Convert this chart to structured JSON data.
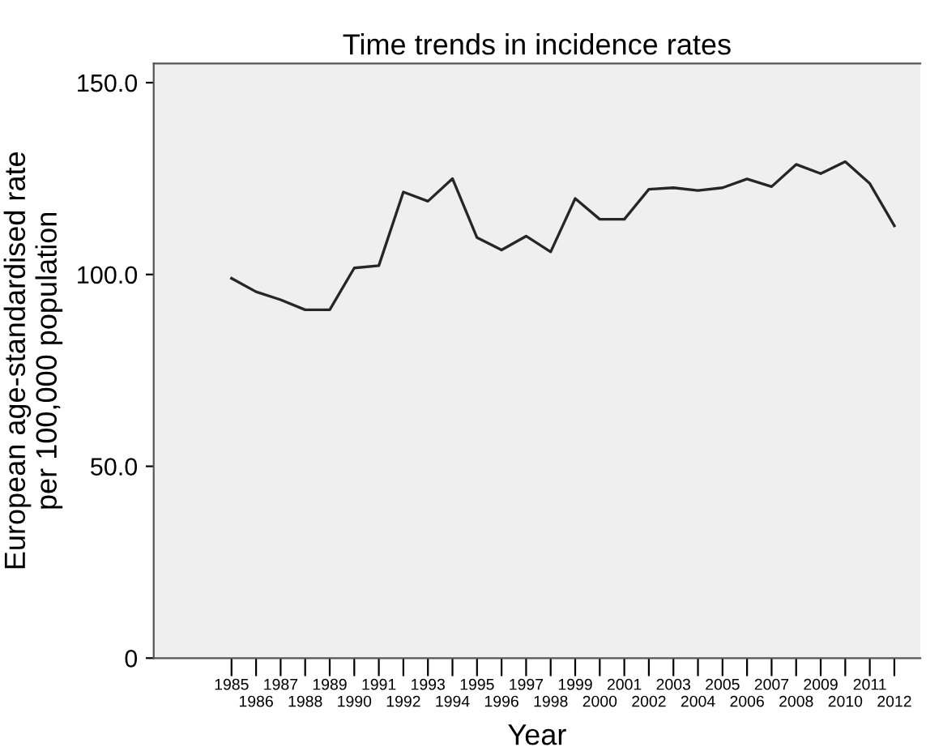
{
  "chart_data": {
    "type": "line",
    "title": "Time trends in incidence rates",
    "xlabel": "Year",
    "ylabel": "European age-standardised rate\nper 100,000 population",
    "categories": [
      "1985",
      "1986",
      "1987",
      "1988",
      "1989",
      "1990",
      "1991",
      "1992",
      "1993",
      "1994",
      "1995",
      "1996",
      "1997",
      "1998",
      "1999",
      "2000",
      "2001",
      "2002",
      "2003",
      "2004",
      "2005",
      "2006",
      "2007",
      "2008",
      "2009",
      "2010",
      "2011",
      "2012"
    ],
    "series": [
      {
        "color": "#262626",
        "values": [
          99.0,
          95.5,
          93.4,
          90.8,
          90.8,
          101.7,
          102.3,
          121.5,
          119.1,
          125.0,
          109.6,
          106.4,
          110.0,
          105.9,
          119.8,
          114.4,
          114.4,
          122.2,
          122.6,
          121.9,
          122.6,
          124.9,
          122.9,
          128.7,
          126.3,
          129.4,
          123.7,
          112.7
        ]
      }
    ],
    "ylim": [
      0,
      155
    ],
    "yticks": [
      {
        "value": 0,
        "label": "0"
      },
      {
        "value": 50,
        "label": "50.0"
      },
      {
        "value": 100,
        "label": "100.0"
      },
      {
        "value": 150,
        "label": "150.0"
      }
    ],
    "grid": false,
    "legend": false,
    "marker": "none",
    "line_style": "solid"
  }
}
